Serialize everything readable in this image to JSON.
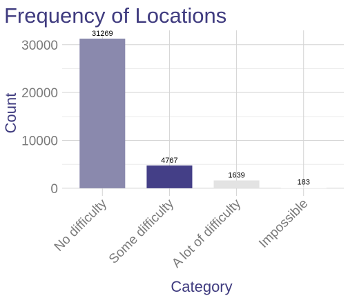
{
  "chart_data": {
    "type": "bar",
    "title": "Frequency of Locations",
    "xlabel": "Category",
    "ylabel": "Count",
    "categories": [
      "No difficulty",
      "Some difficulty",
      "A lot of difficulty",
      "Impossible"
    ],
    "values": [
      31269,
      4767,
      1639,
      183
    ],
    "data_labels": [
      "31269",
      "4767",
      "1639",
      "183"
    ],
    "bar_colors": [
      "#8a89ad",
      "#443f87",
      "#e3e3e3",
      "#ffffff"
    ],
    "y_ticks": [
      0,
      10000,
      20000,
      30000
    ],
    "y_tick_labels": [
      "0",
      "10000",
      "20000",
      "30000"
    ],
    "ylim": [
      -1600,
      33000
    ],
    "grid": true,
    "legend": "none"
  },
  "colors": {
    "title": "#3f3b7f",
    "tick_label": "#7a7a7a",
    "grid_major": "#d4d4d4",
    "grid_minor": "#ececec"
  }
}
